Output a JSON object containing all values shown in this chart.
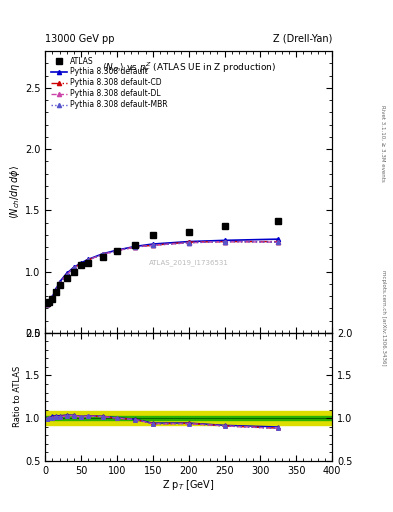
{
  "title_left": "13000 GeV pp",
  "title_right": "Z (Drell-Yan)",
  "plot_title": "$\\langle N_{ch}\\rangle$ vs $p_T^Z$ (ATLAS UE in Z production)",
  "right_label_top": "Rivet 3.1.10, ≥ 3.3M events",
  "right_label_bottom": "mcplots.cern.ch [arXiv:1306.3436]",
  "watermark": "ATLAS_2019_I1736531",
  "xlabel": "Z p$_T$ [GeV]",
  "ylabel_main": "$\\langle N_{ch}/d\\eta\\, d\\phi\\rangle$",
  "ylabel_ratio": "Ratio to ATLAS",
  "ylim_main": [
    0.5,
    2.8
  ],
  "ylim_ratio": [
    0.5,
    2.0
  ],
  "xlim": [
    0,
    400
  ],
  "atlas_x": [
    2,
    6,
    10,
    15,
    20,
    30,
    40,
    50,
    60,
    80,
    100,
    125,
    150,
    200,
    250,
    325
  ],
  "atlas_y": [
    0.74,
    0.75,
    0.78,
    0.83,
    0.89,
    0.95,
    1.0,
    1.05,
    1.07,
    1.12,
    1.17,
    1.22,
    1.3,
    1.32,
    1.37,
    1.41
  ],
  "pythia_x": [
    2,
    6,
    10,
    15,
    20,
    30,
    40,
    50,
    60,
    80,
    100,
    125,
    150,
    200,
    250,
    325
  ],
  "pythia_default_y": [
    0.735,
    0.755,
    0.795,
    0.855,
    0.915,
    0.985,
    1.035,
    1.07,
    1.1,
    1.145,
    1.175,
    1.205,
    1.225,
    1.245,
    1.255,
    1.265
  ],
  "pythia_cd_y": [
    0.735,
    0.75,
    0.785,
    0.845,
    0.905,
    0.975,
    1.03,
    1.065,
    1.095,
    1.14,
    1.17,
    1.2,
    1.215,
    1.24,
    1.245,
    1.245
  ],
  "pythia_dl_y": [
    0.735,
    0.75,
    0.785,
    0.845,
    0.905,
    0.975,
    1.03,
    1.065,
    1.095,
    1.14,
    1.17,
    1.2,
    1.215,
    1.235,
    1.245,
    1.24
  ],
  "pythia_mbr_y": [
    0.735,
    0.75,
    0.785,
    0.845,
    0.905,
    0.975,
    1.03,
    1.065,
    1.095,
    1.14,
    1.17,
    1.2,
    1.215,
    1.235,
    1.245,
    1.24
  ],
  "color_default": "#0000cc",
  "color_cd": "#cc0000",
  "color_dl": "#cc44aa",
  "color_mbr": "#5555cc",
  "atlas_band_yellow": "#dddd00",
  "atlas_band_green": "#00aa00",
  "atlas_band_outer": 0.08,
  "atlas_band_inner": 0.025
}
